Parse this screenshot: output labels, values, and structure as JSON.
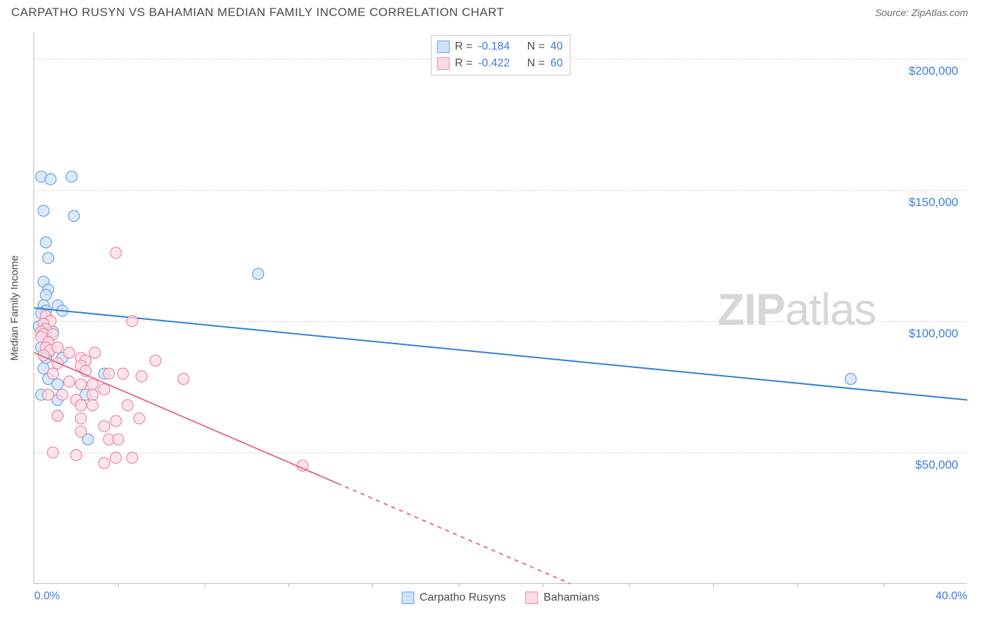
{
  "header": {
    "title": "CARPATHO RUSYN VS BAHAMIAN MEDIAN FAMILY INCOME CORRELATION CHART",
    "source_prefix": "Source: ",
    "source_name": "ZipAtlas.com"
  },
  "watermark": {
    "zip": "ZIP",
    "atlas": "atlas"
  },
  "chart": {
    "type": "scatter",
    "background_color": "#ffffff",
    "grid_color": "#d6d6d6",
    "axis_color": "#bfbfbf",
    "y_axis_title": "Median Family Income",
    "xlim": [
      0,
      40
    ],
    "ylim": [
      0,
      210000
    ],
    "y_ticks": [
      {
        "value": 50000,
        "label": "$50,000"
      },
      {
        "value": 100000,
        "label": "$100,000"
      },
      {
        "value": 150000,
        "label": "$150,000"
      },
      {
        "value": 200000,
        "label": "$200,000"
      }
    ],
    "x_ticks_major": [
      0,
      40
    ],
    "x_tick_labels": [
      {
        "value": 0,
        "label": "0.0%"
      },
      {
        "value": 40,
        "label": "40.0%"
      }
    ],
    "x_ticks_minor": [
      3.6,
      7.3,
      10.9,
      14.5,
      18.2,
      21.8,
      25.5,
      29.1,
      32.7,
      36.4
    ],
    "series": [
      {
        "key": "carpatho",
        "label": "Carpatho Rusyns",
        "marker_fill": "#cfe2f6",
        "marker_stroke": "#6fa8e6",
        "marker_opacity": 0.75,
        "marker_radius": 8,
        "line_color": "#2f7ed8",
        "line_width": 2,
        "r_value": "-0.184",
        "n_value": "40",
        "regression": {
          "x1": 0,
          "y1": 105000,
          "x2": 40,
          "y2": 70000,
          "dashed_from": null
        },
        "points": [
          [
            0.3,
            155000
          ],
          [
            0.7,
            154000
          ],
          [
            1.6,
            155000
          ],
          [
            0.4,
            142000
          ],
          [
            1.7,
            140000
          ],
          [
            0.5,
            130000
          ],
          [
            0.6,
            124000
          ],
          [
            0.4,
            115000
          ],
          [
            0.6,
            112000
          ],
          [
            0.5,
            110000
          ],
          [
            9.6,
            118000
          ],
          [
            0.4,
            106000
          ],
          [
            0.5,
            104000
          ],
          [
            0.3,
            103000
          ],
          [
            1.0,
            106000
          ],
          [
            1.2,
            104000
          ],
          [
            0.2,
            98000
          ],
          [
            0.4,
            97000
          ],
          [
            0.5,
            95000
          ],
          [
            0.8,
            96000
          ],
          [
            0.3,
            90000
          ],
          [
            0.6,
            88000
          ],
          [
            0.5,
            86000
          ],
          [
            1.2,
            86000
          ],
          [
            0.4,
            82000
          ],
          [
            0.6,
            78000
          ],
          [
            1.0,
            76000
          ],
          [
            3.0,
            80000
          ],
          [
            0.3,
            72000
          ],
          [
            1.0,
            70000
          ],
          [
            2.2,
            72000
          ],
          [
            1.0,
            64000
          ],
          [
            2.3,
            55000
          ],
          [
            35.0,
            78000
          ]
        ]
      },
      {
        "key": "bahamian",
        "label": "Bahamians",
        "marker_fill": "#fbdbe4",
        "marker_stroke": "#e98fa8",
        "marker_opacity": 0.75,
        "marker_radius": 8,
        "line_color": "#e76f8c",
        "line_width": 2,
        "r_value": "-0.422",
        "n_value": "60",
        "regression": {
          "x1": 0,
          "y1": 88000,
          "x2": 23,
          "y2": 0,
          "dashed_from": 13
        },
        "points": [
          [
            3.5,
            126000
          ],
          [
            0.5,
            102000
          ],
          [
            0.7,
            100000
          ],
          [
            0.4,
            99000
          ],
          [
            0.5,
            97000
          ],
          [
            0.3,
            96000
          ],
          [
            0.4,
            95000
          ],
          [
            0.3,
            94000
          ],
          [
            0.8,
            95000
          ],
          [
            0.6,
            92000
          ],
          [
            0.5,
            90000
          ],
          [
            0.7,
            89000
          ],
          [
            1.0,
            90000
          ],
          [
            4.2,
            100000
          ],
          [
            0.4,
            87000
          ],
          [
            1.5,
            88000
          ],
          [
            2.6,
            88000
          ],
          [
            2.0,
            86000
          ],
          [
            2.2,
            85000
          ],
          [
            1.0,
            84000
          ],
          [
            2.0,
            83000
          ],
          [
            2.2,
            81000
          ],
          [
            5.2,
            85000
          ],
          [
            0.8,
            80000
          ],
          [
            3.2,
            80000
          ],
          [
            3.8,
            80000
          ],
          [
            4.6,
            79000
          ],
          [
            1.5,
            77000
          ],
          [
            2.0,
            76000
          ],
          [
            2.5,
            76000
          ],
          [
            3.0,
            74000
          ],
          [
            0.6,
            72000
          ],
          [
            1.2,
            72000
          ],
          [
            2.5,
            72000
          ],
          [
            1.8,
            70000
          ],
          [
            6.4,
            78000
          ],
          [
            2.0,
            68000
          ],
          [
            2.5,
            68000
          ],
          [
            4.0,
            68000
          ],
          [
            1.0,
            64000
          ],
          [
            2.0,
            63000
          ],
          [
            3.5,
            62000
          ],
          [
            4.5,
            63000
          ],
          [
            3.0,
            60000
          ],
          [
            2.0,
            58000
          ],
          [
            3.2,
            55000
          ],
          [
            3.6,
            55000
          ],
          [
            0.8,
            50000
          ],
          [
            1.8,
            49000
          ],
          [
            3.5,
            48000
          ],
          [
            4.2,
            48000
          ],
          [
            3.0,
            46000
          ],
          [
            11.5,
            45000
          ]
        ]
      }
    ],
    "stats_labels": {
      "r": "R =",
      "n": "N ="
    }
  }
}
